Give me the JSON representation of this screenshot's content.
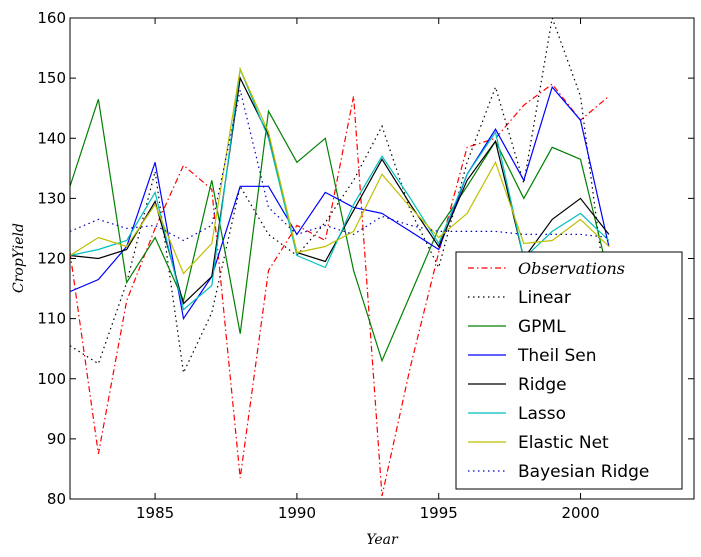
{
  "chart_data": {
    "type": "line",
    "xlabel": "Year",
    "ylabel": "CropYield",
    "xlim": [
      1982,
      2004
    ],
    "ylim": [
      80,
      160
    ],
    "xticks": [
      1985,
      1990,
      1995,
      2000
    ],
    "yticks": [
      80,
      90,
      100,
      110,
      120,
      130,
      140,
      150,
      160
    ],
    "grid": false,
    "legend_position": "lower-right",
    "x": [
      1982,
      1983,
      1984,
      1985,
      1986,
      1987,
      1988,
      1989,
      1990,
      1991,
      1992,
      1993,
      1994,
      1995,
      1996,
      1997,
      1998,
      1999,
      2000,
      2001
    ],
    "series": [
      {
        "name": "Observations",
        "color": "#ff0000",
        "style": "dashdot",
        "italic": true,
        "values": [
          121,
          87.5,
          113,
          125,
          135.5,
          131.5,
          83.5,
          118,
          125.5,
          123,
          147,
          80.5,
          102,
          121,
          138.5,
          140,
          145.5,
          149,
          143,
          147
        ]
      },
      {
        "name": "Linear",
        "color": "#000000",
        "style": "dotted",
        "values": [
          105.5,
          102.5,
          116,
          134.5,
          101,
          111,
          132,
          124,
          120.5,
          126,
          133,
          142,
          128,
          118.5,
          136,
          148.5,
          132.5,
          160,
          147,
          110.5
        ]
      },
      {
        "name": "GPML",
        "color": "#008000",
        "style": "solid",
        "values": [
          132,
          146.5,
          116,
          123.5,
          113,
          133,
          107.5,
          144.5,
          136,
          140,
          118,
          103,
          114,
          125,
          132,
          139.5,
          130,
          138.5,
          136.5,
          117
        ]
      },
      {
        "name": "Theil Sen",
        "color": "#0000ff",
        "style": "solid",
        "values": [
          114.5,
          116.5,
          122,
          136,
          110,
          117,
          132,
          132,
          124,
          131,
          128.5,
          127.5,
          124.5,
          121.5,
          134,
          141.5,
          133,
          148.5,
          143,
          122
        ]
      },
      {
        "name": "Ridge",
        "color": "#000000",
        "style": "solid",
        "values": [
          120.5,
          120,
          121.5,
          129.5,
          112.5,
          117,
          150,
          140.5,
          121,
          119.5,
          128,
          136.5,
          129,
          122,
          133,
          139.5,
          120,
          126.5,
          130,
          124
        ]
      },
      {
        "name": "Lasso",
        "color": "#00bfbf",
        "style": "solid",
        "values": [
          120.5,
          121.5,
          123,
          131,
          111.5,
          115.5,
          151.5,
          140,
          120.5,
          118.5,
          129,
          137,
          130,
          122.5,
          134,
          141,
          120,
          124.5,
          127.5,
          123
        ]
      },
      {
        "name": "Elastic Net",
        "color": "#bfbf00",
        "style": "solid",
        "values": [
          120.5,
          123.5,
          122,
          129,
          117.5,
          122.5,
          151.5,
          141,
          121,
          122,
          124.5,
          134,
          128.5,
          123.5,
          127.5,
          136,
          122.5,
          123,
          126.5,
          122
        ]
      },
      {
        "name": "Bayesian Ridge",
        "color": "#0000bf",
        "style": "dotted",
        "values": [
          124.5,
          126.5,
          125,
          125.5,
          123,
          125.5,
          148,
          128.5,
          124,
          125.5,
          124,
          127,
          125.5,
          124.5,
          124.5,
          124.5,
          124,
          124,
          124,
          123.5
        ]
      }
    ]
  }
}
